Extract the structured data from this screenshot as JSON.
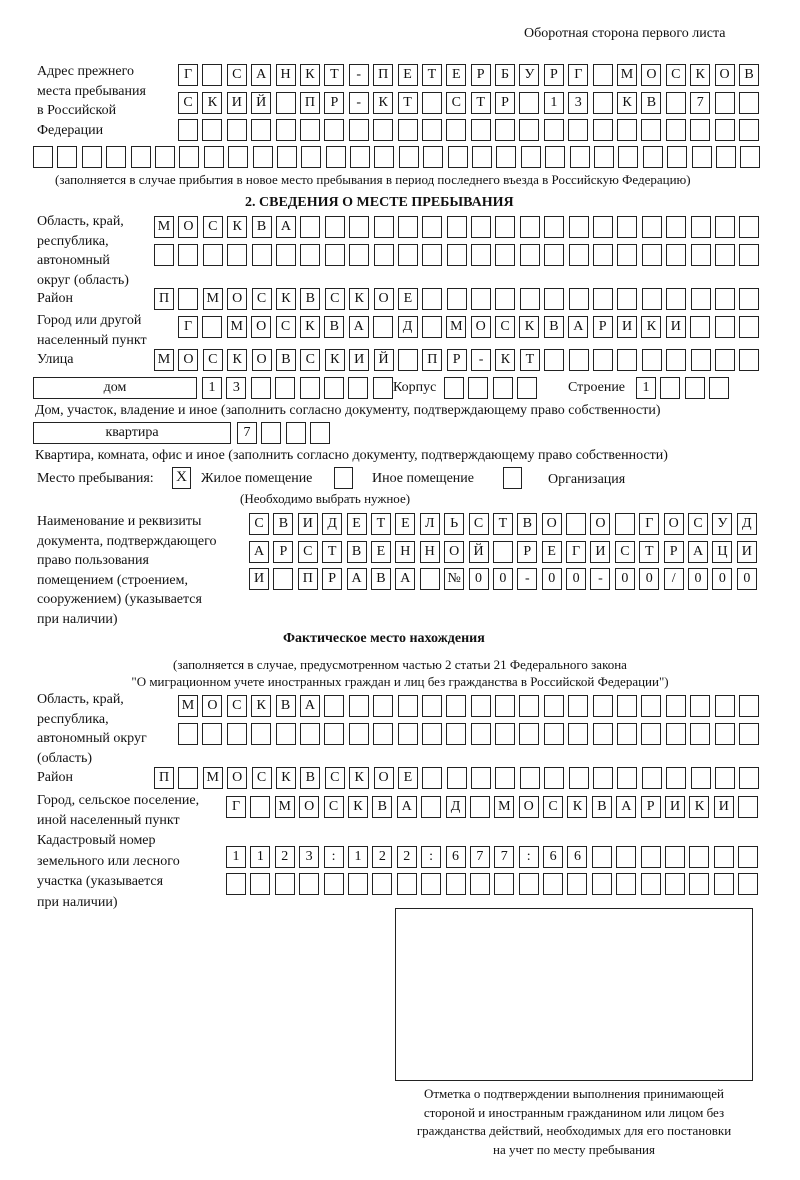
{
  "header": "Оборотная сторона первого листа",
  "previous_address": {
    "label": "Адрес прежнего\nместа пребывания\nв Российской\nФедерации",
    "rows": [
      [
        "Г",
        "",
        "С",
        "А",
        "Н",
        "К",
        "Т",
        "-",
        "П",
        "Е",
        "Т",
        "Е",
        "Р",
        "Б",
        "У",
        "Р",
        "Г",
        "",
        "М",
        "О",
        "С",
        "К",
        "О",
        "В"
      ],
      [
        "С",
        "К",
        "И",
        "Й",
        "",
        "П",
        "Р",
        "-",
        "К",
        "Т",
        "",
        "С",
        "Т",
        "Р",
        "",
        "1",
        "3",
        "",
        "К",
        "В",
        "",
        "7",
        "",
        ""
      ],
      [
        "",
        "",
        "",
        "",
        "",
        "",
        "",
        "",
        "",
        "",
        "",
        "",
        "",
        "",
        "",
        "",
        "",
        "",
        "",
        "",
        "",
        "",
        "",
        ""
      ],
      [
        "",
        "",
        "",
        "",
        "",
        "",
        "",
        "",
        "",
        "",
        "",
        "",
        "",
        "",
        "",
        "",
        "",
        "",
        "",
        "",
        "",
        "",
        "",
        "",
        "",
        "",
        "",
        "",
        "",
        ""
      ]
    ],
    "note": "(заполняется в случае прибытия в новое место пребывания в период последнего въезда в Российскую Федерацию)"
  },
  "section2": {
    "title": "2. СВЕДЕНИЯ О МЕСТЕ ПРЕБЫВАНИЯ",
    "region_label": "Область, край,\nреспублика,\nавтономный\nокруг (область)",
    "region_rows": [
      [
        "М",
        "О",
        "С",
        "К",
        "В",
        "А",
        "",
        "",
        "",
        "",
        "",
        "",
        "",
        "",
        "",
        "",
        "",
        "",
        "",
        "",
        "",
        "",
        "",
        "",
        ""
      ],
      [
        "",
        "",
        "",
        "",
        "",
        "",
        "",
        "",
        "",
        "",
        "",
        "",
        "",
        "",
        "",
        "",
        "",
        "",
        "",
        "",
        "",
        "",
        "",
        "",
        ""
      ]
    ],
    "district_label": "Район",
    "district": [
      "П",
      "",
      "М",
      "О",
      "С",
      "К",
      "В",
      "С",
      "К",
      "О",
      "Е",
      "",
      "",
      "",
      "",
      "",
      "",
      "",
      "",
      "",
      "",
      "",
      "",
      "",
      ""
    ],
    "city_label": "Город или другой\nнаселенный пункт",
    "city": [
      "Г",
      "",
      "М",
      "О",
      "С",
      "К",
      "В",
      "А",
      "",
      "Д",
      "",
      "М",
      "О",
      "С",
      "К",
      "В",
      "А",
      "Р",
      "И",
      "К",
      "И",
      "",
      "",
      ""
    ],
    "street_label": "Улица",
    "street": [
      "М",
      "О",
      "С",
      "К",
      "О",
      "В",
      "С",
      "К",
      "И",
      "Й",
      "",
      "П",
      "Р",
      "-",
      "К",
      "Т",
      "",
      "",
      "",
      "",
      "",
      "",
      "",
      "",
      ""
    ],
    "house_type": "дом",
    "house": [
      "1",
      "3",
      "",
      "",
      "",
      "",
      "",
      ""
    ],
    "building_label": "Корпус",
    "building": [
      "",
      "",
      "",
      ""
    ],
    "structure_label": "Строение",
    "structure": [
      "1",
      "",
      "",
      ""
    ],
    "house_note": "Дом, участок, владение и иное (заполнить согласно документу, подтверждающему право собственности)",
    "apartment_type": "квартира",
    "apartment": [
      "7",
      "",
      "",
      ""
    ],
    "apartment_note": "Квартира, комната, офис и иное (заполнить согласно документу, подтверждающему право собственности)",
    "stay_place_label": "Место пребывания:",
    "options": [
      {
        "label": "Жилое помещение",
        "mark": "X"
      },
      {
        "label": "Иное помещение",
        "mark": ""
      },
      {
        "label": "Организация",
        "mark": ""
      }
    ],
    "choose_note": "(Необходимо выбрать нужное)",
    "document_label": "Наименование и реквизиты\nдокумента, подтверждающего\nправо пользования\nпомещением (строением,\nсооружением) (указывается\nпри наличии)",
    "document_rows": [
      [
        "С",
        "В",
        "И",
        "Д",
        "Е",
        "Т",
        "Е",
        "Л",
        "Ь",
        "С",
        "Т",
        "В",
        "О",
        "",
        "О",
        "",
        "Г",
        "О",
        "С",
        "У",
        "Д"
      ],
      [
        "А",
        "Р",
        "С",
        "Т",
        "В",
        "Е",
        "Н",
        "Н",
        "О",
        "Й",
        "",
        "Р",
        "Е",
        "Г",
        "И",
        "С",
        "Т",
        "Р",
        "А",
        "Ц",
        "И"
      ],
      [
        "И",
        "",
        "П",
        "Р",
        "А",
        "В",
        "А",
        "",
        "№",
        "0",
        "0",
        "-",
        "0",
        "0",
        "-",
        "0",
        "0",
        "/",
        "0",
        "0",
        "0"
      ]
    ]
  },
  "actual": {
    "title": "Фактическое место нахождения",
    "note1": "(заполняется в случае, предусмотренном частью 2 статьи 21 Федерального закона",
    "note2": "\"О миграционном учете иностранных граждан и лиц без гражданства в Российской Федерации\")",
    "region_label": "Область, край,\nреспублика,\nавтономный округ\n(область)",
    "region_rows": [
      [
        "М",
        "О",
        "С",
        "К",
        "В",
        "А",
        "",
        "",
        "",
        "",
        "",
        "",
        "",
        "",
        "",
        "",
        "",
        "",
        "",
        "",
        "",
        "",
        "",
        ""
      ],
      [
        "",
        "",
        "",
        "",
        "",
        "",
        "",
        "",
        "",
        "",
        "",
        "",
        "",
        "",
        "",
        "",
        "",
        "",
        "",
        "",
        "",
        "",
        "",
        ""
      ]
    ],
    "district_label": "Район",
    "district": [
      "П",
      "",
      "М",
      "О",
      "С",
      "К",
      "В",
      "С",
      "К",
      "О",
      "Е",
      "",
      "",
      "",
      "",
      "",
      "",
      "",
      "",
      "",
      "",
      "",
      "",
      "",
      ""
    ],
    "city_label": "Город, сельское поселение,\nиной населенный пункт",
    "city": [
      "Г",
      "",
      "М",
      "О",
      "С",
      "К",
      "В",
      "А",
      "",
      "Д",
      "",
      "М",
      "О",
      "С",
      "К",
      "В",
      "А",
      "Р",
      "И",
      "К",
      "И",
      ""
    ],
    "cadastral_label": "Кадастровый номер\nземельного или лесного\nучастка (указывается\nпри наличии)",
    "cadastral_rows": [
      [
        "1",
        "1",
        "2",
        "3",
        ":",
        "1",
        "2",
        "2",
        ":",
        "6",
        "7",
        "7",
        ":",
        "6",
        "6",
        "",
        "",
        "",
        "",
        "",
        "",
        ""
      ],
      [
        "",
        "",
        "",
        "",
        "",
        "",
        "",
        "",
        "",
        "",
        "",
        "",
        "",
        "",
        "",
        "",
        "",
        "",
        "",
        "",
        "",
        ""
      ]
    ]
  },
  "confirmation_caption": "Отметка о подтверждении выполнения принимающей\nстороной и иностранным гражданином или лицом без\nгражданства действий, необходимых для его постановки\nна учет по месту пребывания"
}
